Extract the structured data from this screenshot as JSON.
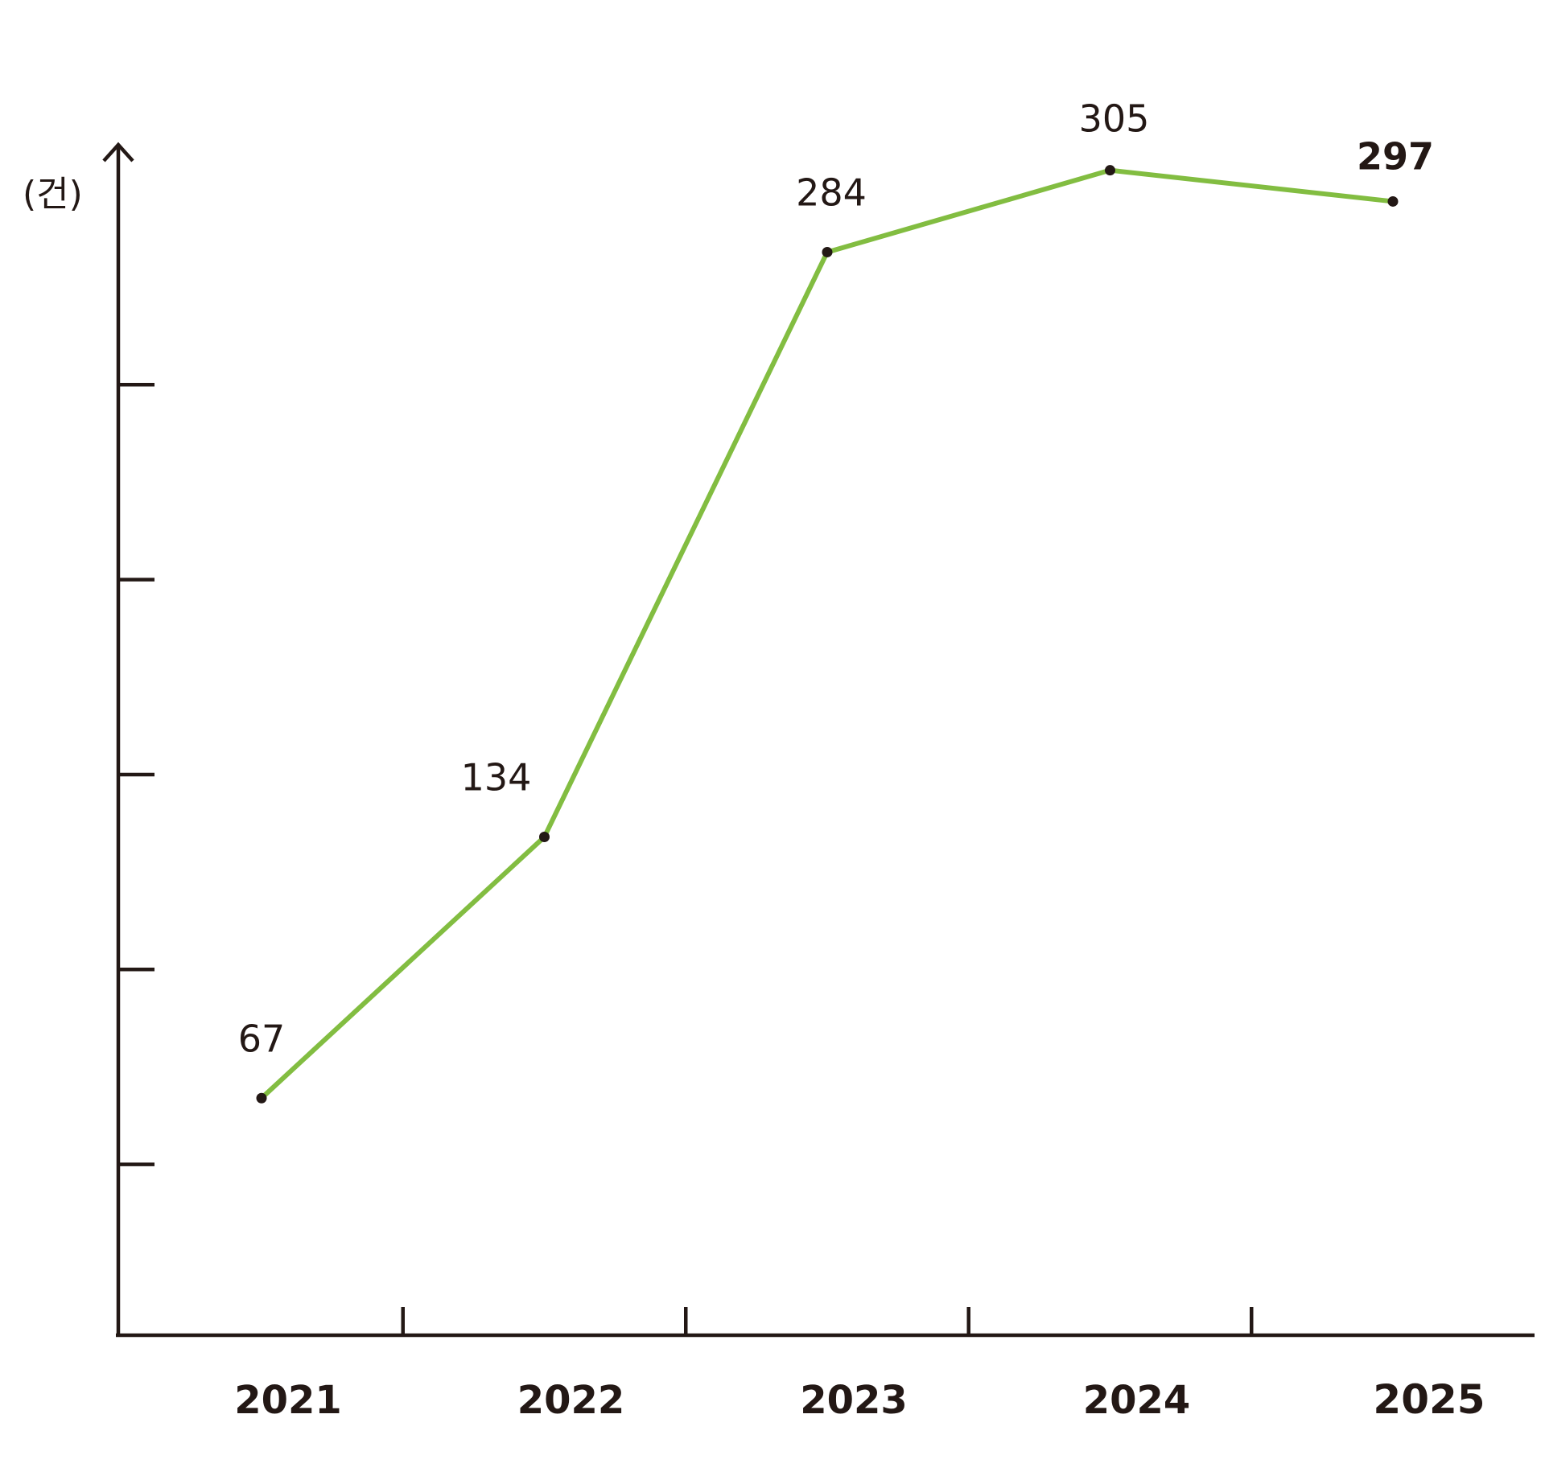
{
  "chart_data": {
    "type": "line",
    "categories": [
      "2021",
      "2022",
      "2023",
      "2024",
      "2025"
    ],
    "series": [
      {
        "values": [
          67,
          134,
          284,
          305,
          297
        ],
        "color": "#82bd41"
      }
    ],
    "data_labels": [
      "67",
      "134",
      "284",
      "305",
      "297"
    ],
    "ylabel": "(건)",
    "xlabel": "",
    "title": "",
    "ylim": [
      0,
      300
    ],
    "yticks": [
      50,
      100,
      150,
      200,
      250
    ],
    "y_tick_labels_shown": false,
    "grid": false,
    "legend": "none",
    "axis_color": "#231815",
    "point_color": "#231815"
  }
}
